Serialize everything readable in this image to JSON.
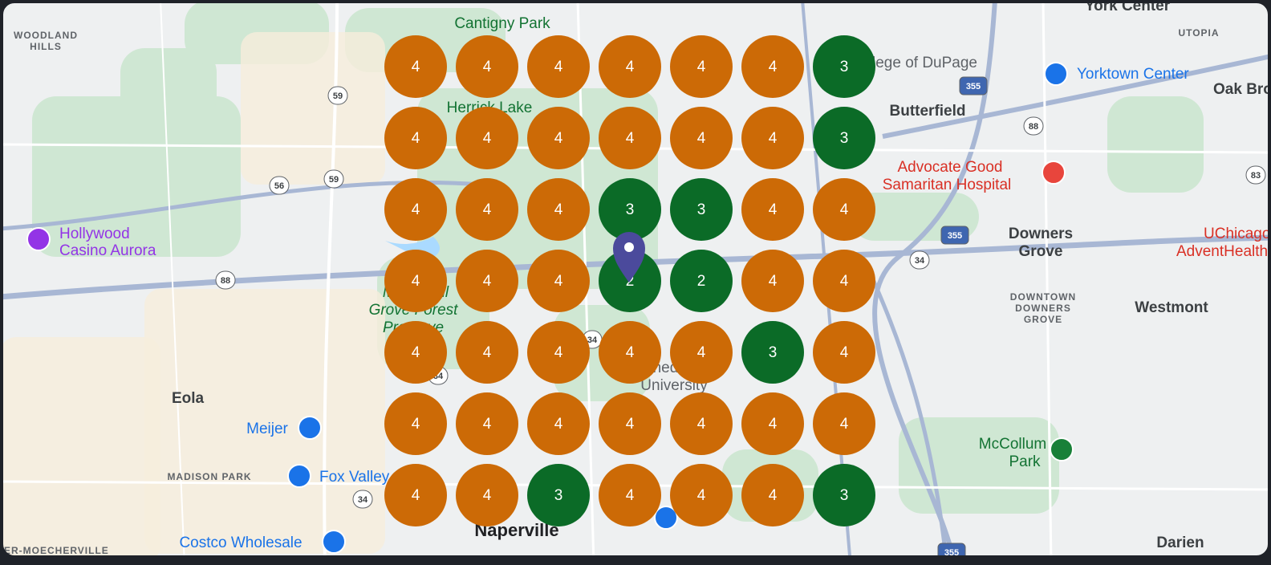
{
  "map": {
    "labels": [
      "Cantigny Park",
      "York Center",
      "UTOPIA",
      "WOODLAND",
      "HILLS",
      "College of DuPage",
      "Herrick Lake",
      "Yorktown Center",
      "Oak Brook",
      "Butterfield",
      "Advocate Good",
      "Samaritan Hospital",
      "Hollywood",
      "Casino Aurora",
      "Downers",
      "Grove",
      "UChicago",
      "AdventHealth",
      "DOWNTOWN",
      "DOWNERS",
      "GROVE",
      "Westmont",
      "McDowell",
      "Grove Forest",
      "Preserve",
      "Benedictine",
      "University",
      "Eola",
      "Meijer",
      "McCollum",
      "Park",
      "MADISON PARK",
      "Fox Valley",
      "Naperville",
      "Costco Wholesale",
      "Darien",
      "ER-MOECHERVILLE"
    ],
    "shields": [
      "59",
      "59",
      "56",
      "88",
      "355",
      "88",
      "355",
      "34",
      "34",
      "34",
      "34",
      "355",
      "83"
    ],
    "grid": {
      "rows": [
        [
          4,
          4,
          4,
          4,
          4,
          4,
          3
        ],
        [
          4,
          4,
          4,
          4,
          4,
          4,
          3
        ],
        [
          4,
          4,
          4,
          3,
          3,
          4,
          4
        ],
        [
          4,
          4,
          4,
          2,
          2,
          4,
          4
        ],
        [
          4,
          4,
          4,
          4,
          4,
          3,
          4
        ],
        [
          4,
          4,
          4,
          4,
          4,
          4,
          4
        ],
        [
          4,
          4,
          3,
          4,
          4,
          4,
          3
        ]
      ],
      "colors": {
        "2": "#0b6b27",
        "3": "#0b6b27",
        "4": "#cc6a06"
      }
    }
  }
}
